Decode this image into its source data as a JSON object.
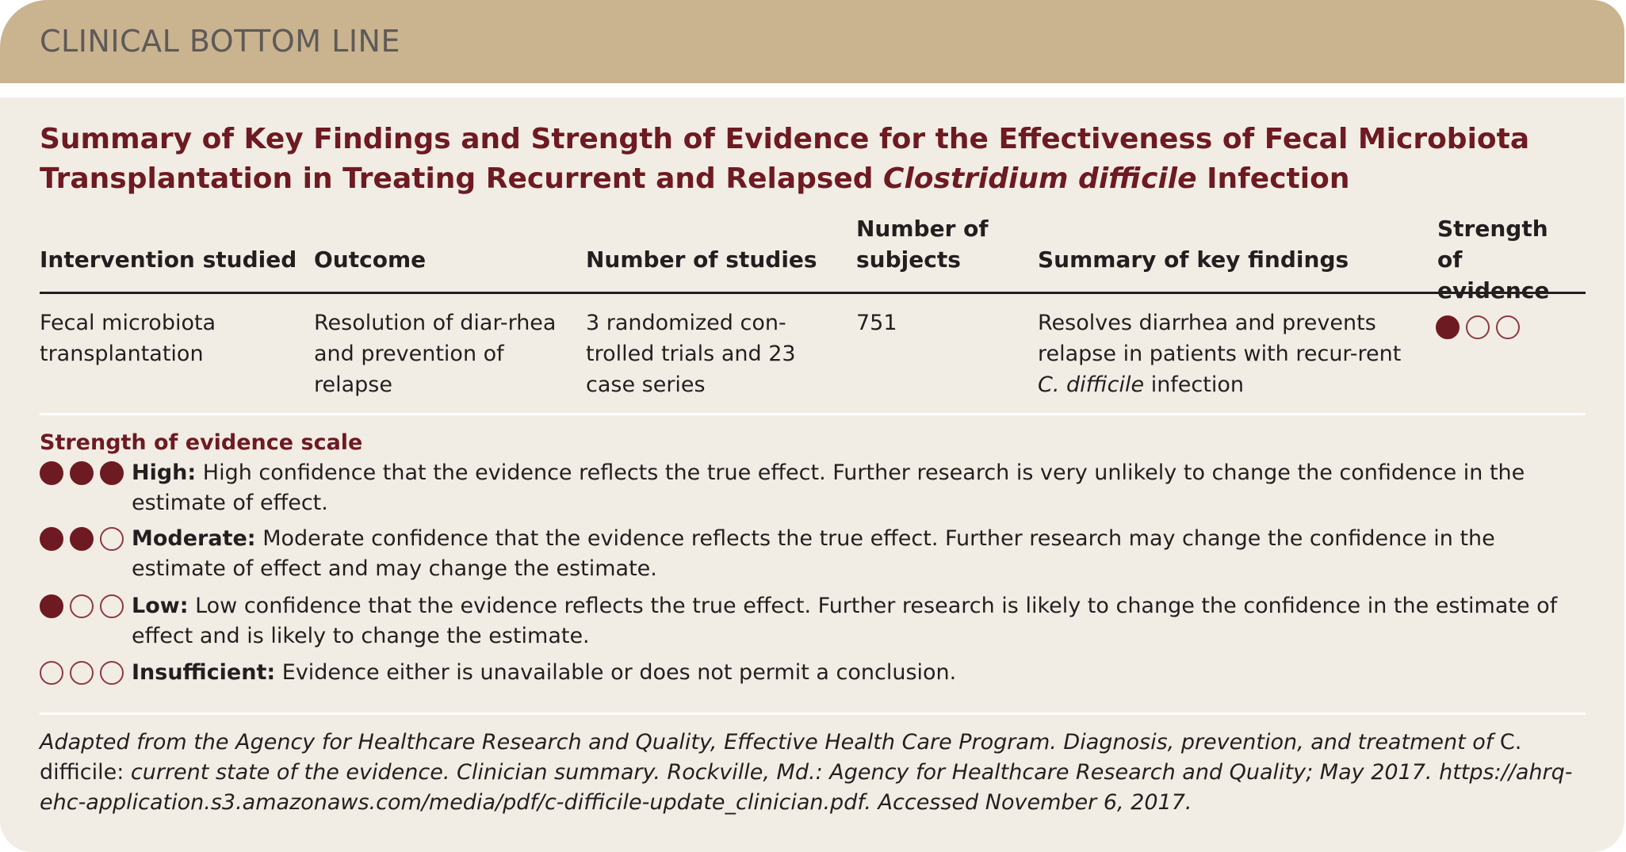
{
  "banner": "CLINICAL BOTTOM LINE",
  "title": {
    "part1": "Summary of Key Findings and Strength of Evidence for the Effectiveness of Fecal Microbiota Transplantation in Treating Recurrent and Relapsed ",
    "italic": "Clostridium difficile",
    "part2": " Infection"
  },
  "table": {
    "headers": [
      "Intervention studied",
      "Outcome",
      "Number of studies",
      "Number of subjects",
      "Summary of key findings",
      "Strength of evidence"
    ],
    "row": {
      "intervention": "Fecal microbiota transplantation",
      "outcome": "Resolution of diar-rhea and prevention of relapse",
      "studies": "3 randomized con-trolled trials and 23 case series",
      "subjects": "751",
      "findings_pre": "Resolves diarrhea and prevents relapse in patients with recur-rent ",
      "findings_italic": "C. difficile",
      "findings_post": " infection",
      "strength_filled": 1,
      "strength_level": "Low"
    }
  },
  "scale": {
    "title": "Strength of evidence scale",
    "items": [
      {
        "label": "High:",
        "text": " High confidence that the evidence reflects the true effect. Further research is very unlikely to change the confidence in the estimate of effect.",
        "filled": 3
      },
      {
        "label": "Moderate:",
        "text": " Moderate confidence that the evidence reflects the true effect. Further research may change the confidence in the estimate of effect and may change the estimate.",
        "filled": 2
      },
      {
        "label": "Low:",
        "text": " Low confidence that the evidence reflects the true effect. Further research is likely to change the confidence in the estimate of effect and is likely to change the estimate.",
        "filled": 1
      },
      {
        "label": "Insufficient:",
        "text": " Evidence either is unavailable or does not permit a conclusion.",
        "filled": 0
      }
    ]
  },
  "footer": {
    "part1": "Adapted from the Agency for Healthcare Research and Quality, Effective Health Care Program. Diagnosis, prevention, and treatment of ",
    "upright": "C. difficile:",
    "part2": " current state of the evidence. Clinician summary. Rockville, Md.: Agency for Healthcare Research and Quality; May 2017. https://ahrq-ehc-application.s3.amazonaws.com/media/pdf/c-difficile-update_clinician.pdf. Accessed November 6, 2017."
  },
  "colors": {
    "banner": "#c9b48f",
    "accent": "#6e1a22",
    "background": "#f2ede4"
  }
}
